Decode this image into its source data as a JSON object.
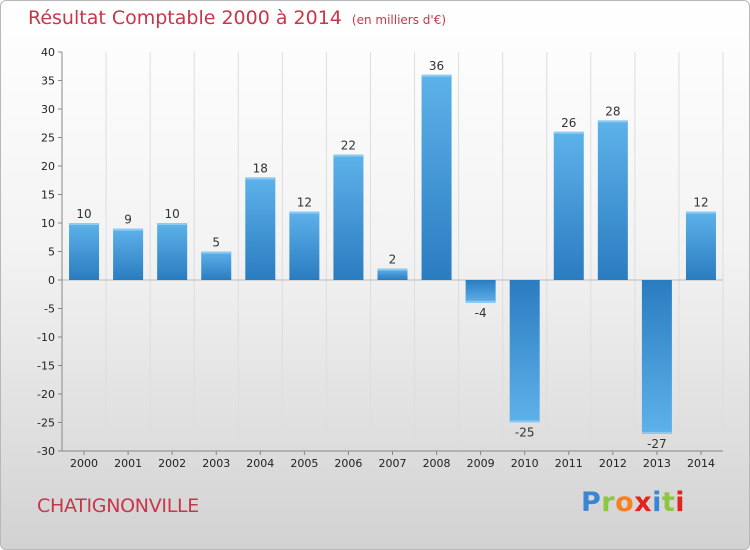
{
  "header": {
    "title": "Résultat Comptable 2000 à 2014",
    "unit": "(en milliers d'€)"
  },
  "footer": {
    "town": "CHATIGNONVILLE",
    "logo": {
      "letters": [
        "P",
        "r",
        "o",
        "x",
        "i",
        "t",
        "i"
      ],
      "colors": [
        "#3a86d4",
        "#8dc63f",
        "#f58220",
        "#e2241f",
        "#3a86d4",
        "#8dc63f",
        "#e2241f"
      ]
    }
  },
  "chart_data": {
    "type": "bar",
    "title": "Résultat Comptable 2000 à 2014",
    "subtitle": "(en milliers d'€)",
    "categories": [
      "2000",
      "2001",
      "2002",
      "2003",
      "2004",
      "2005",
      "2006",
      "2007",
      "2008",
      "2009",
      "2010",
      "2011",
      "2012",
      "2013",
      "2014"
    ],
    "values": [
      10,
      9,
      10,
      5,
      18,
      12,
      22,
      2,
      36,
      -4,
      -25,
      26,
      28,
      -27,
      12
    ],
    "ylim": [
      -30,
      40
    ],
    "yticks": [
      -30,
      -25,
      -20,
      -15,
      -10,
      -5,
      0,
      5,
      10,
      15,
      20,
      25,
      30,
      35,
      40
    ],
    "grid": "vertical",
    "legend": "none",
    "colors": {
      "bar_light": "#5aaee6",
      "bar_dark": "#2a7cc0",
      "title": "#c8364a"
    }
  }
}
